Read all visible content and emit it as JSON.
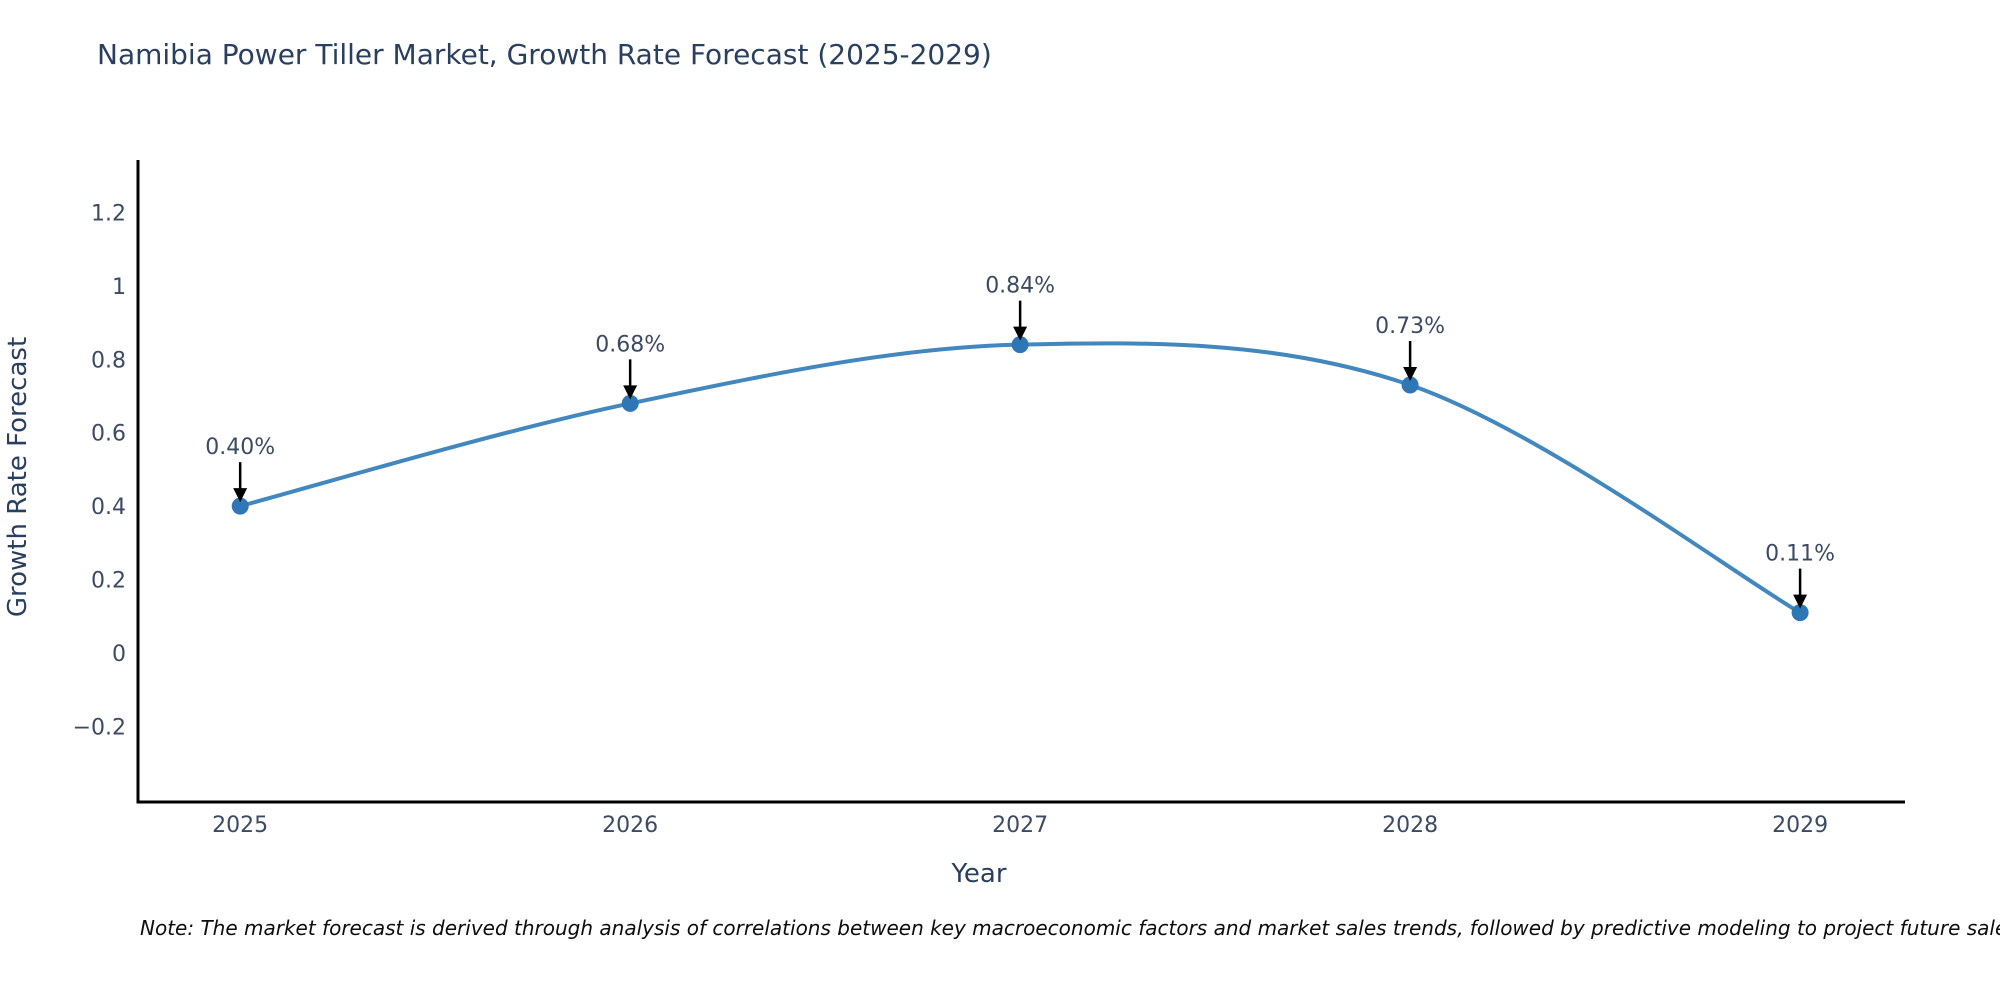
{
  "note": "Note: The market forecast is derived through analysis of correlations between key macroeconomic factors and market sales trends, followed by predictive modeling to project future sales.",
  "chart_data": {
    "type": "line",
    "title": "Namibia Power Tiller Market, Growth Rate Forecast (2025-2029)",
    "xlabel": "Year",
    "ylabel": "Growth Rate Forecast",
    "x": [
      2025,
      2026,
      2027,
      2028,
      2029
    ],
    "x_tick_labels": [
      "2025",
      "2026",
      "2027",
      "2028",
      "2029"
    ],
    "series": [
      {
        "name": "Growth Rate Forecast",
        "values": [
          0.4,
          0.68,
          0.84,
          0.73,
          0.11
        ],
        "point_labels": [
          "0.40%",
          "0.68%",
          "0.84%",
          "0.73%",
          "0.11%"
        ]
      }
    ],
    "yticks": [
      -0.2,
      0,
      0.2,
      0.4,
      0.6,
      0.8,
      1,
      1.2
    ],
    "ylim": [
      -0.406,
      1.343
    ],
    "xlim": [
      2024.738,
      2029.269
    ],
    "line_shape": "spline",
    "grid": false,
    "legend": "none",
    "annotations_arrowed": true,
    "colors": {
      "line": "#4287bd",
      "marker": "#2e76b5",
      "axis_line": "#000000",
      "title_text": "#2a3f5f",
      "tick_text": "#3c4a63",
      "annotation_text": "#3c4a63",
      "annotation_arrow": "#000000"
    }
  }
}
